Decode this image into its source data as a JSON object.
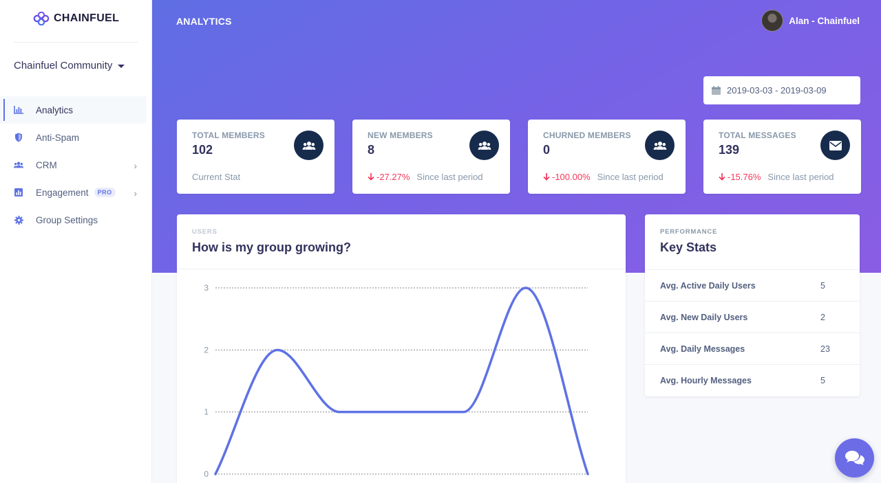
{
  "brand": {
    "name": "CHAINFUEL"
  },
  "sidebar": {
    "community": "Chainfuel Community",
    "items": [
      {
        "label": "Analytics",
        "icon": "bar-chart-icon",
        "active": true
      },
      {
        "label": "Anti-Spam",
        "icon": "shield-icon"
      },
      {
        "label": "CRM",
        "icon": "users-icon",
        "chevron": true
      },
      {
        "label": "Engagement",
        "icon": "chart-box-icon",
        "badge": "PRO",
        "chevron": true
      },
      {
        "label": "Group Settings",
        "icon": "gear-icon"
      }
    ]
  },
  "header": {
    "title": "ANALYTICS",
    "user": "Alan - Chainfuel",
    "date_range": "2019-03-03 - 2019-03-09"
  },
  "stats": [
    {
      "label": "TOTAL MEMBERS",
      "value": "102",
      "footer": "Current Stat",
      "icon": "users-icon"
    },
    {
      "label": "NEW MEMBERS",
      "value": "8",
      "delta": "-27.27%",
      "footer": "Since last period",
      "icon": "users-icon"
    },
    {
      "label": "CHURNED MEMBERS",
      "value": "0",
      "delta": "-100.00%",
      "footer": "Since last period",
      "icon": "users-icon"
    },
    {
      "label": "TOTAL MESSAGES",
      "value": "139",
      "delta": "-15.76%",
      "footer": "Since last period",
      "icon": "envelope-icon"
    }
  ],
  "growth_card": {
    "eyebrow": "USERS",
    "title": "How is my group growing?"
  },
  "key_stats": {
    "eyebrow": "PERFORMANCE",
    "title": "Key Stats",
    "rows": [
      {
        "name": "Avg. Active Daily Users",
        "value": "5"
      },
      {
        "name": "Avg. New Daily Users",
        "value": "2"
      },
      {
        "name": "Avg. Daily Messages",
        "value": "23"
      },
      {
        "name": "Avg. Hourly Messages",
        "value": "5"
      }
    ]
  },
  "colors": {
    "accent": "#5e72e4",
    "negative": "#f5365c",
    "icon_bg": "#172b4d"
  },
  "chart_data": {
    "type": "line",
    "x": [
      0,
      1,
      2,
      3,
      4,
      5,
      6
    ],
    "values": [
      0,
      2,
      1,
      1,
      1,
      3,
      0
    ],
    "title": "",
    "xlabel": "",
    "ylabel": "",
    "ylim": [
      0,
      3
    ],
    "y_ticks": [
      "0",
      "1",
      "2",
      "3"
    ],
    "grid": true,
    "smooth": true
  }
}
